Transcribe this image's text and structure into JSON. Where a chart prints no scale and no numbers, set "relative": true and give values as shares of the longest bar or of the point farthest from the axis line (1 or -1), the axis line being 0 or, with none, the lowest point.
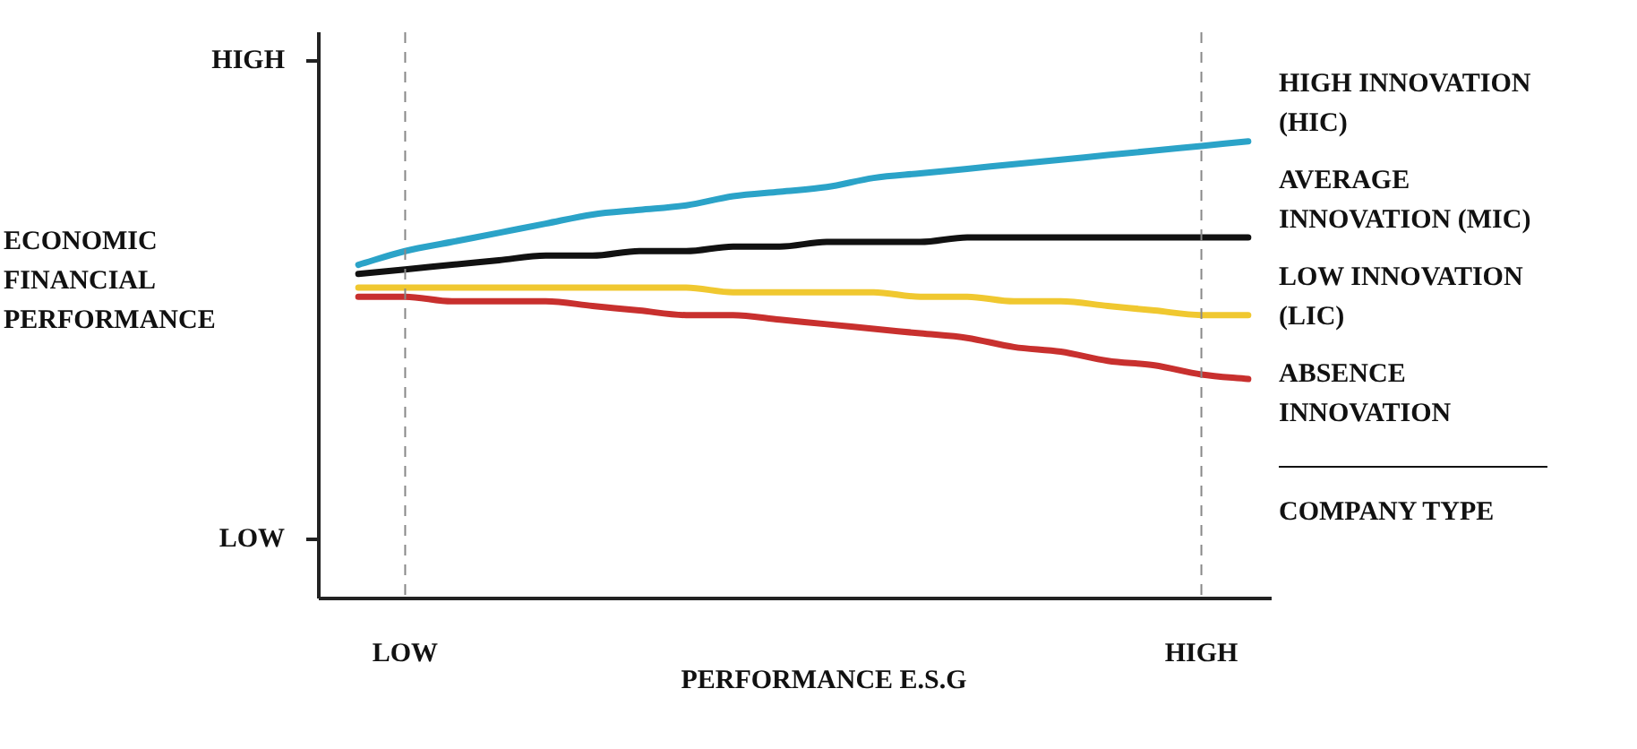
{
  "chart_data": {
    "type": "line",
    "relative": true,
    "xlabel": "PERFORMANCE E.S.G",
    "ylabel": "ECONOMIC FINANCIAL PERFORMANCE",
    "legend_title": "COMPANY TYPE",
    "legend": "right",
    "marker": "none",
    "line_style": "solid",
    "categories": [
      null,
      "LOW",
      null,
      null,
      null,
      null,
      null,
      null,
      null,
      null,
      null,
      null,
      null,
      null,
      null,
      null,
      null,
      null,
      "HIGH",
      null
    ],
    "series": [
      {
        "name": "HIGH INNOVATION (HIC)",
        "color": "#2ba3c8",
        "values": [
          0.73,
          0.76,
          0.78,
          0.8,
          0.82,
          0.84,
          0.85,
          0.86,
          0.88,
          0.89,
          0.9,
          0.92,
          0.93,
          0.94,
          0.95,
          0.96,
          0.97,
          0.98,
          0.99,
          1.0
        ]
      },
      {
        "name": "AVERAGE INNOVATION (MIC)",
        "color": "#111111",
        "values": [
          0.71,
          0.72,
          0.73,
          0.74,
          0.75,
          0.75,
          0.76,
          0.76,
          0.77,
          0.77,
          0.78,
          0.78,
          0.78,
          0.79,
          0.79,
          0.79,
          0.79,
          0.79,
          0.79,
          0.79
        ]
      },
      {
        "name": "LOW INNOVATION (LIC)",
        "color": "#f0c830",
        "values": [
          0.68,
          0.68,
          0.68,
          0.68,
          0.68,
          0.68,
          0.68,
          0.68,
          0.67,
          0.67,
          0.67,
          0.67,
          0.66,
          0.66,
          0.65,
          0.65,
          0.64,
          0.63,
          0.62,
          0.62
        ]
      },
      {
        "name": "ABSENCE INNOVATION",
        "color": "#c8302e",
        "values": [
          0.66,
          0.66,
          0.65,
          0.65,
          0.65,
          0.64,
          0.63,
          0.62,
          0.62,
          0.61,
          0.6,
          0.59,
          0.58,
          0.57,
          0.55,
          0.54,
          0.52,
          0.51,
          0.49,
          0.48
        ]
      }
    ],
    "ref_lines": [
      {
        "axis": "x",
        "value": "LOW",
        "color": "#888888",
        "line_style": "dashed"
      },
      {
        "axis": "x",
        "value": "HIGH",
        "color": "#888888",
        "line_style": "dashed"
      }
    ],
    "annotations": [
      "HIGH",
      "LOW"
    ]
  }
}
